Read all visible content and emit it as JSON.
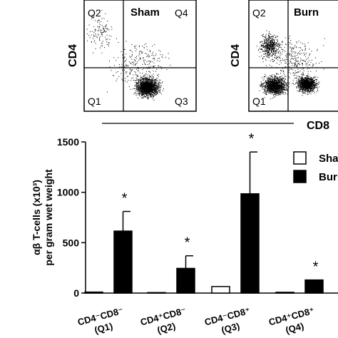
{
  "flow_panels": [
    {
      "label": "Sham",
      "quadrants": {
        "q1": "Q1",
        "q2": "Q2",
        "q3": "Q3",
        "q4": "Q4"
      },
      "y_axis_label": "CD4"
    },
    {
      "label": "Burn",
      "quadrants": {
        "q1": "Q1",
        "q2": "Q2"
      },
      "y_axis_label": "CD4"
    }
  ],
  "flow_x_axis_label": "CD8",
  "chart_data": {
    "type": "bar",
    "title": "",
    "ylabel_line1": "αβ T-cells (x10³)",
    "ylabel_line2": "per gram wet weight",
    "xlabel": "",
    "ylim": [
      0,
      1500
    ],
    "yticks": [
      0,
      500,
      1000,
      1500
    ],
    "categories": [
      {
        "line1": "CD4⁻CD8⁻",
        "line2": "(Q1)"
      },
      {
        "line1": "CD4⁺CD8⁻",
        "line2": "(Q2)"
      },
      {
        "line1": "CD4⁻CD8⁺",
        "line2": "(Q3)"
      },
      {
        "line1": "CD4⁺CD8⁺",
        "line2": "(Q4)"
      }
    ],
    "series": [
      {
        "name": "Sham",
        "fill": "#ffffff",
        "values": [
          10,
          5,
          65,
          8
        ],
        "errors": [
          0,
          0,
          0,
          0
        ]
      },
      {
        "name": "Burn",
        "fill": "#000000",
        "values": [
          615,
          245,
          985,
          130
        ],
        "errors": [
          195,
          125,
          415,
          0
        ]
      }
    ],
    "significance": [
      "*",
      "*",
      "*",
      "*"
    ],
    "legend_position": "top-right"
  }
}
